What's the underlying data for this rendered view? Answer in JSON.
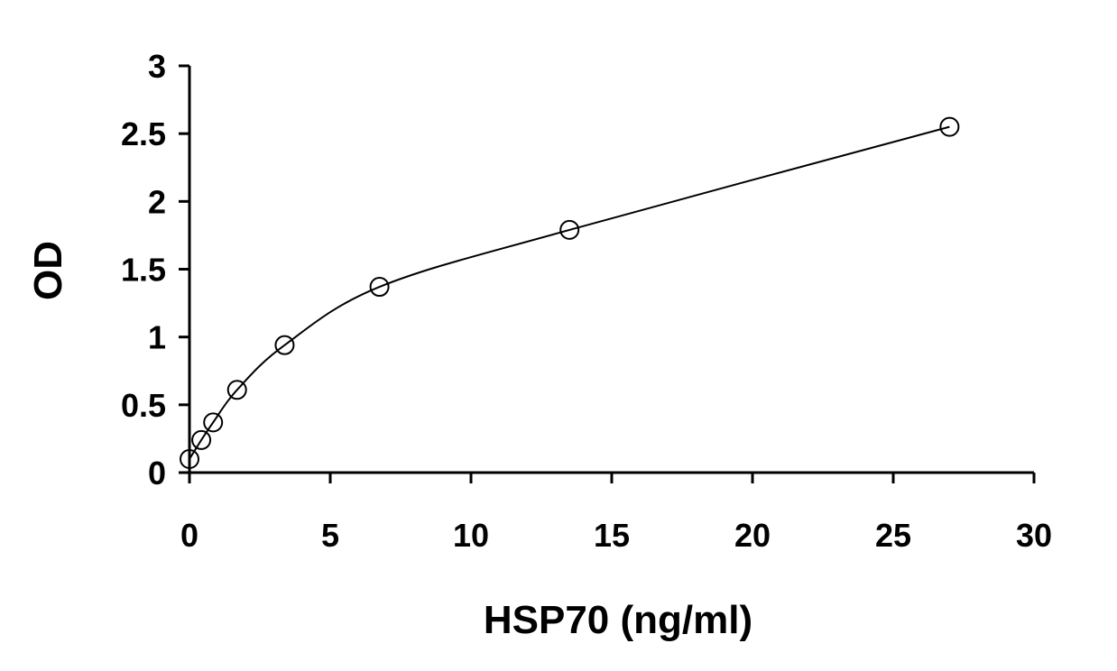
{
  "chart_data": {
    "type": "scatter",
    "title": "",
    "xlabel": "HSP70 (ng/ml)",
    "ylabel": "OD",
    "xlim": [
      0,
      30
    ],
    "ylim": [
      0,
      3
    ],
    "xticks": [
      0,
      5,
      10,
      15,
      20,
      25,
      30
    ],
    "yticks": [
      0,
      0.5,
      1,
      1.5,
      2,
      2.5,
      3
    ],
    "ytick_labels": [
      "0",
      "0.5",
      "1",
      "1.5",
      "2",
      "2.5",
      "3"
    ],
    "grid": false,
    "legend": "none",
    "series": [
      {
        "marker": "open-circle",
        "fit": "smooth-curve",
        "x": [
          0,
          0.42,
          0.84,
          1.69,
          3.38,
          6.75,
          13.5,
          27
        ],
        "y": [
          0.1,
          0.24,
          0.37,
          0.61,
          0.94,
          1.37,
          1.79,
          2.55
        ]
      }
    ],
    "colors": {
      "axis": "#000000",
      "series": "#000000"
    }
  }
}
